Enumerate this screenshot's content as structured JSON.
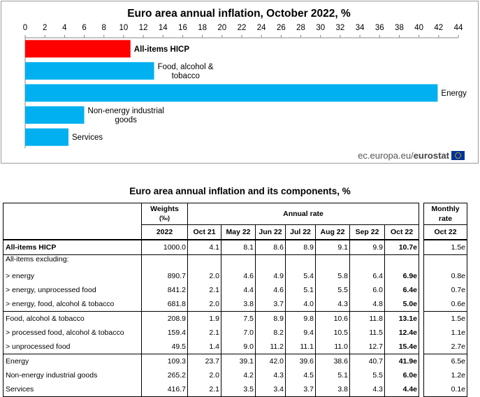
{
  "chart_data": {
    "type": "bar",
    "orientation": "horizontal",
    "title": "Euro area annual inflation, October 2022, %",
    "categories": [
      "All-items HICP",
      "Food, alcohol & tobacco",
      "Energy",
      "Non-energy industrial goods",
      "Services"
    ],
    "category_lines": [
      [
        "All-items HICP"
      ],
      [
        "Food, alcohol &",
        "tobacco"
      ],
      [
        "Energy"
      ],
      [
        "Non-energy industrial",
        "goods"
      ],
      [
        "Services"
      ]
    ],
    "values": [
      10.7,
      13.1,
      41.9,
      6.0,
      4.4
    ],
    "bar_colors": [
      "#ff0000",
      "#00b0f0",
      "#00b0f0",
      "#00b0f0",
      "#00b0f0"
    ],
    "xlim": [
      0,
      44
    ],
    "ticks": [
      "0",
      "2",
      "4",
      "6",
      "8",
      "10",
      "12",
      "14",
      "16",
      "18",
      "20",
      "22",
      "24",
      "26",
      "28",
      "30",
      "32",
      "34",
      "36",
      "38",
      "40",
      "42",
      "44"
    ],
    "source_light": "ec.europa.eu/",
    "source_bold": "eurostat",
    "flag_color": "#003399",
    "flag_star_color": "#ffcc00"
  },
  "table": {
    "title": "Euro area annual inflation and its components, %",
    "weights_header": "Weights",
    "weights_unit": "(‰)",
    "annual_header": "Annual rate",
    "monthly_header_1": "Monthly",
    "monthly_header_2": "rate",
    "year": "2022",
    "periods": [
      "Oct 21",
      "May 22",
      "Jun 22",
      "Jul 22",
      "Aug 22",
      "Sep 22",
      "Oct 22"
    ],
    "monthly_period": "Oct 22",
    "rows": [
      {
        "label": "All-items HICP",
        "weight": "1000.0",
        "values": [
          "4.1",
          "8.1",
          "8.6",
          "8.9",
          "9.1",
          "9.9",
          "10.7e"
        ],
        "monthly": "1.5e",
        "bold": true,
        "group": "a"
      },
      {
        "label": "All-items excluding:",
        "weight": "",
        "values": [
          "",
          "",
          "",
          "",
          "",
          "",
          ""
        ],
        "monthly": "",
        "bold": false,
        "group": "b",
        "subheader": true
      },
      {
        "label": "> energy",
        "weight": "890.7",
        "values": [
          "2.0",
          "4.6",
          "4.9",
          "5.4",
          "5.8",
          "6.4",
          "6.9e"
        ],
        "monthly": "0.8e",
        "bold": false,
        "group": "b"
      },
      {
        "label": "> energy, unprocessed food",
        "weight": "841.2",
        "values": [
          "2.1",
          "4.4",
          "4.6",
          "5.1",
          "5.5",
          "6.0",
          "6.4e"
        ],
        "monthly": "0.7e",
        "bold": false,
        "group": "b"
      },
      {
        "label": "> energy, food, alcohol & tobacco",
        "weight": "681.8",
        "values": [
          "2.0",
          "3.8",
          "3.7",
          "4.0",
          "4.3",
          "4.8",
          "5.0e"
        ],
        "monthly": "0.6e",
        "bold": false,
        "group": "b"
      },
      {
        "label": "Food, alcohol & tobacco",
        "weight": "208.9",
        "values": [
          "1.9",
          "7.5",
          "8.9",
          "9.8",
          "10.6",
          "11.8",
          "13.1e"
        ],
        "monthly": "1.5e",
        "bold": false,
        "group": "c"
      },
      {
        "label": "> processed food, alcohol & tobacco",
        "weight": "159.4",
        "values": [
          "2.1",
          "7.0",
          "8.2",
          "9.4",
          "10.5",
          "11.5",
          "12.4e"
        ],
        "monthly": "1.1e",
        "bold": false,
        "group": "c"
      },
      {
        "label": "> unprocessed food",
        "weight": "49.5",
        "values": [
          "1.4",
          "9.0",
          "11.2",
          "11.1",
          "11.0",
          "12.7",
          "15.4e"
        ],
        "monthly": "2.7e",
        "bold": false,
        "group": "c"
      },
      {
        "label": "Energy",
        "weight": "109.3",
        "values": [
          "23.7",
          "39.1",
          "42.0",
          "39.6",
          "38.6",
          "40.7",
          "41.9e"
        ],
        "monthly": "6.5e",
        "bold": false,
        "group": "d"
      },
      {
        "label": "Non-energy industrial goods",
        "weight": "265.2",
        "values": [
          "2.0",
          "4.2",
          "4.3",
          "4.5",
          "5.1",
          "5.5",
          "6.0e"
        ],
        "monthly": "1.2e",
        "bold": false,
        "group": "d"
      },
      {
        "label": "Services",
        "weight": "416.7",
        "values": [
          "2.1",
          "3.5",
          "3.4",
          "3.7",
          "3.8",
          "4.3",
          "4.4e"
        ],
        "monthly": "0.1e",
        "bold": false,
        "group": "d"
      }
    ]
  }
}
